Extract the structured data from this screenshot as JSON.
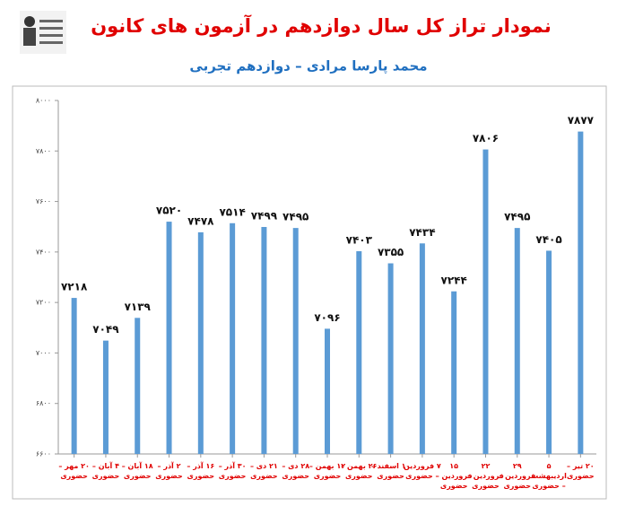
{
  "chart_data": {
    "type": "bar",
    "title": "نمودار تراز کل سال دوازدهم در آزمون های کانون",
    "subtitle": "محمد پارسا مرادی – دوازدهم تجربی",
    "categories": [
      "۲۰ مهر – حضوری",
      "۴ آبان – حضوری",
      "۱۸ آبان – حضوری",
      "۲ آذر – حضوری",
      "۱۶ آذر – حضوری",
      "۳۰ آذر – حضوری",
      "۲۱ دی – حضوری",
      "۲۸ دی – حضوری",
      "۱۲ بهمن – حضوری",
      "۲۶ بهمن – حضوری",
      "۱۰ اسفند – حضوری",
      "۷ فروردین – حضوری",
      "۱۵ فروردین – حضوری",
      "۲۲ فروردین – حضوری",
      "۲۹ فروردین – حضوری",
      "۵ اردیبهشت – حضوری",
      "۲۰ تیر – حضوری"
    ],
    "values": [
      7218,
      7049,
      7139,
      7520,
      7478,
      7514,
      7499,
      7495,
      7096,
      7403,
      7355,
      7434,
      7244,
      7806,
      7495,
      7405,
      7877
    ],
    "value_labels": [
      "۷۲۱۸",
      "۷۰۴۹",
      "۷۱۳۹",
      "۷۵۲۰",
      "۷۴۷۸",
      "۷۵۱۴",
      "۷۴۹۹",
      "۷۴۹۵",
      "۷۰۹۶",
      "۷۴۰۳",
      "۷۳۵۵",
      "۷۴۳۴",
      "۷۲۴۴",
      "۷۸۰۶",
      "۷۴۹۵",
      "۷۴۰۵",
      "۷۸۷۷"
    ],
    "color": "#5b9bd5",
    "ylim": [
      6600,
      8000
    ],
    "yticks": [
      {
        "value": 6600,
        "label": "۶۶۰۰"
      },
      {
        "value": 6800,
        "label": "۶۸۰۰"
      },
      {
        "value": 7000,
        "label": "۷۰۰۰"
      },
      {
        "value": 7200,
        "label": "۷۲۰۰"
      },
      {
        "value": 7400,
        "label": "۷۴۰۰"
      },
      {
        "value": 7600,
        "label": "۷۶۰۰"
      },
      {
        "value": 7800,
        "label": "۷۸۰۰"
      },
      {
        "value": 8000,
        "label": "۸۰۰۰"
      }
    ],
    "grid": false
  }
}
